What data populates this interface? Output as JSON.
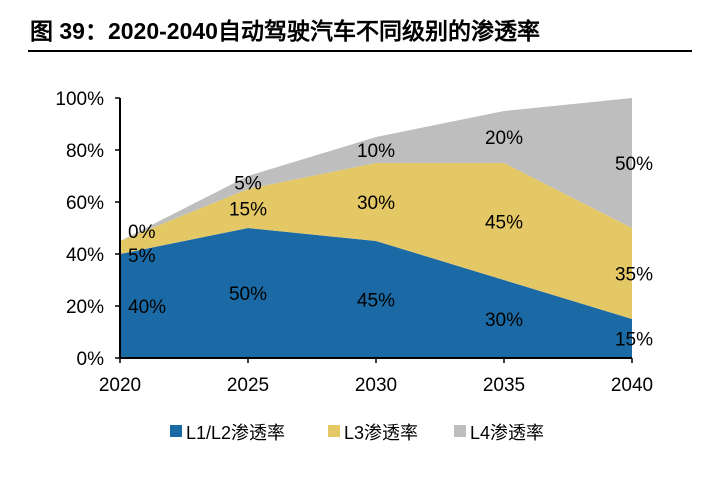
{
  "title": "图 39：2020-2040自动驾驶汽车不同级别的渗透率",
  "chart_data": {
    "type": "area",
    "stacked": true,
    "categories": [
      "2020",
      "2025",
      "2030",
      "2035",
      "2040"
    ],
    "series": [
      {
        "name": "L1/L2渗透率",
        "color": "#1b6aa5",
        "values": [
          40,
          50,
          45,
          30,
          15
        ],
        "labels": [
          "40%",
          "50%",
          "45%",
          "30%",
          "15%"
        ]
      },
      {
        "name": "L3渗透率",
        "color": "#e5c866",
        "values": [
          5,
          15,
          30,
          45,
          35
        ],
        "labels": [
          "5%",
          "15%",
          "30%",
          "45%",
          "35%"
        ]
      },
      {
        "name": "L4渗透率",
        "color": "#bebebe",
        "values": [
          0,
          5,
          10,
          20,
          50
        ],
        "labels": [
          "0%",
          "5%",
          "10%",
          "20%",
          "50%"
        ]
      }
    ],
    "yticks": [
      "0%",
      "20%",
      "40%",
      "60%",
      "80%",
      "100%"
    ],
    "ylim": [
      0,
      100
    ],
    "legend": "bottom",
    "grid": false
  }
}
